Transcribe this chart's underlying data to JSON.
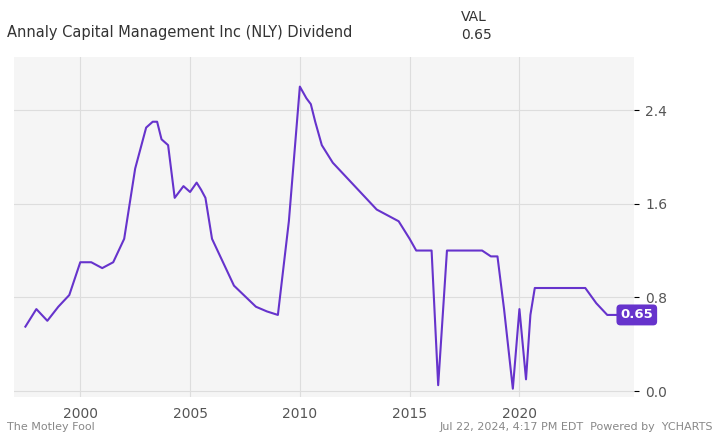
{
  "title_left": "Annaly Capital Management Inc (NLY) Dividend",
  "title_right_label": "VAL",
  "title_right_val": "0.65",
  "line_color": "#6633cc",
  "label_color": "#6633cc",
  "background_color": "#ffffff",
  "grid_color": "#dddddd",
  "ylim": [
    -0.05,
    2.85
  ],
  "yticks": [
    0.0,
    0.8,
    1.6,
    2.4
  ],
  "footer_left": "The Motley Fool",
  "footer_right": "Jul 22, 2024, 4:17 PM EDT  Powered by  YCHARTS",
  "val_label": "0.65",
  "data": {
    "years": [
      1997.5,
      1998.0,
      1998.5,
      1999.0,
      1999.5,
      2000.0,
      2000.5,
      2001.0,
      2001.5,
      2002.0,
      2002.5,
      2003.0,
      2003.3,
      2003.5,
      2003.7,
      2004.0,
      2004.3,
      2004.5,
      2004.7,
      2005.0,
      2005.3,
      2005.5,
      2005.7,
      2006.0,
      2007.0,
      2008.0,
      2008.5,
      2009.0,
      2009.5,
      2010.0,
      2010.3,
      2010.5,
      2010.7,
      2011.0,
      2011.5,
      2012.0,
      2012.5,
      2013.0,
      2013.5,
      2014.0,
      2014.5,
      2015.0,
      2015.3,
      2015.5,
      2015.8,
      2016.0,
      2016.3,
      2016.7,
      2017.0,
      2017.3,
      2017.7,
      2018.0,
      2018.3,
      2018.7,
      2019.0,
      2019.3,
      2019.7,
      2020.0,
      2020.3,
      2020.5,
      2020.7,
      2021.0,
      2021.5,
      2022.0,
      2022.5,
      2023.0,
      2023.5,
      2024.0,
      2024.5
    ],
    "values": [
      0.55,
      0.7,
      0.6,
      0.72,
      0.82,
      1.1,
      1.1,
      1.05,
      1.1,
      1.3,
      1.9,
      2.25,
      2.3,
      2.3,
      2.15,
      2.1,
      1.65,
      1.7,
      1.75,
      1.7,
      1.78,
      1.72,
      1.65,
      1.3,
      0.9,
      0.72,
      0.68,
      0.65,
      1.45,
      2.6,
      2.5,
      2.45,
      2.3,
      2.1,
      1.95,
      1.85,
      1.75,
      1.65,
      1.55,
      1.5,
      1.45,
      1.3,
      1.2,
      1.2,
      1.2,
      1.2,
      0.05,
      1.2,
      1.2,
      1.2,
      1.2,
      1.2,
      1.2,
      1.15,
      1.15,
      0.7,
      0.02,
      0.7,
      0.1,
      0.65,
      0.88,
      0.88,
      0.88,
      0.88,
      0.88,
      0.88,
      0.75,
      0.65,
      0.65
    ]
  }
}
